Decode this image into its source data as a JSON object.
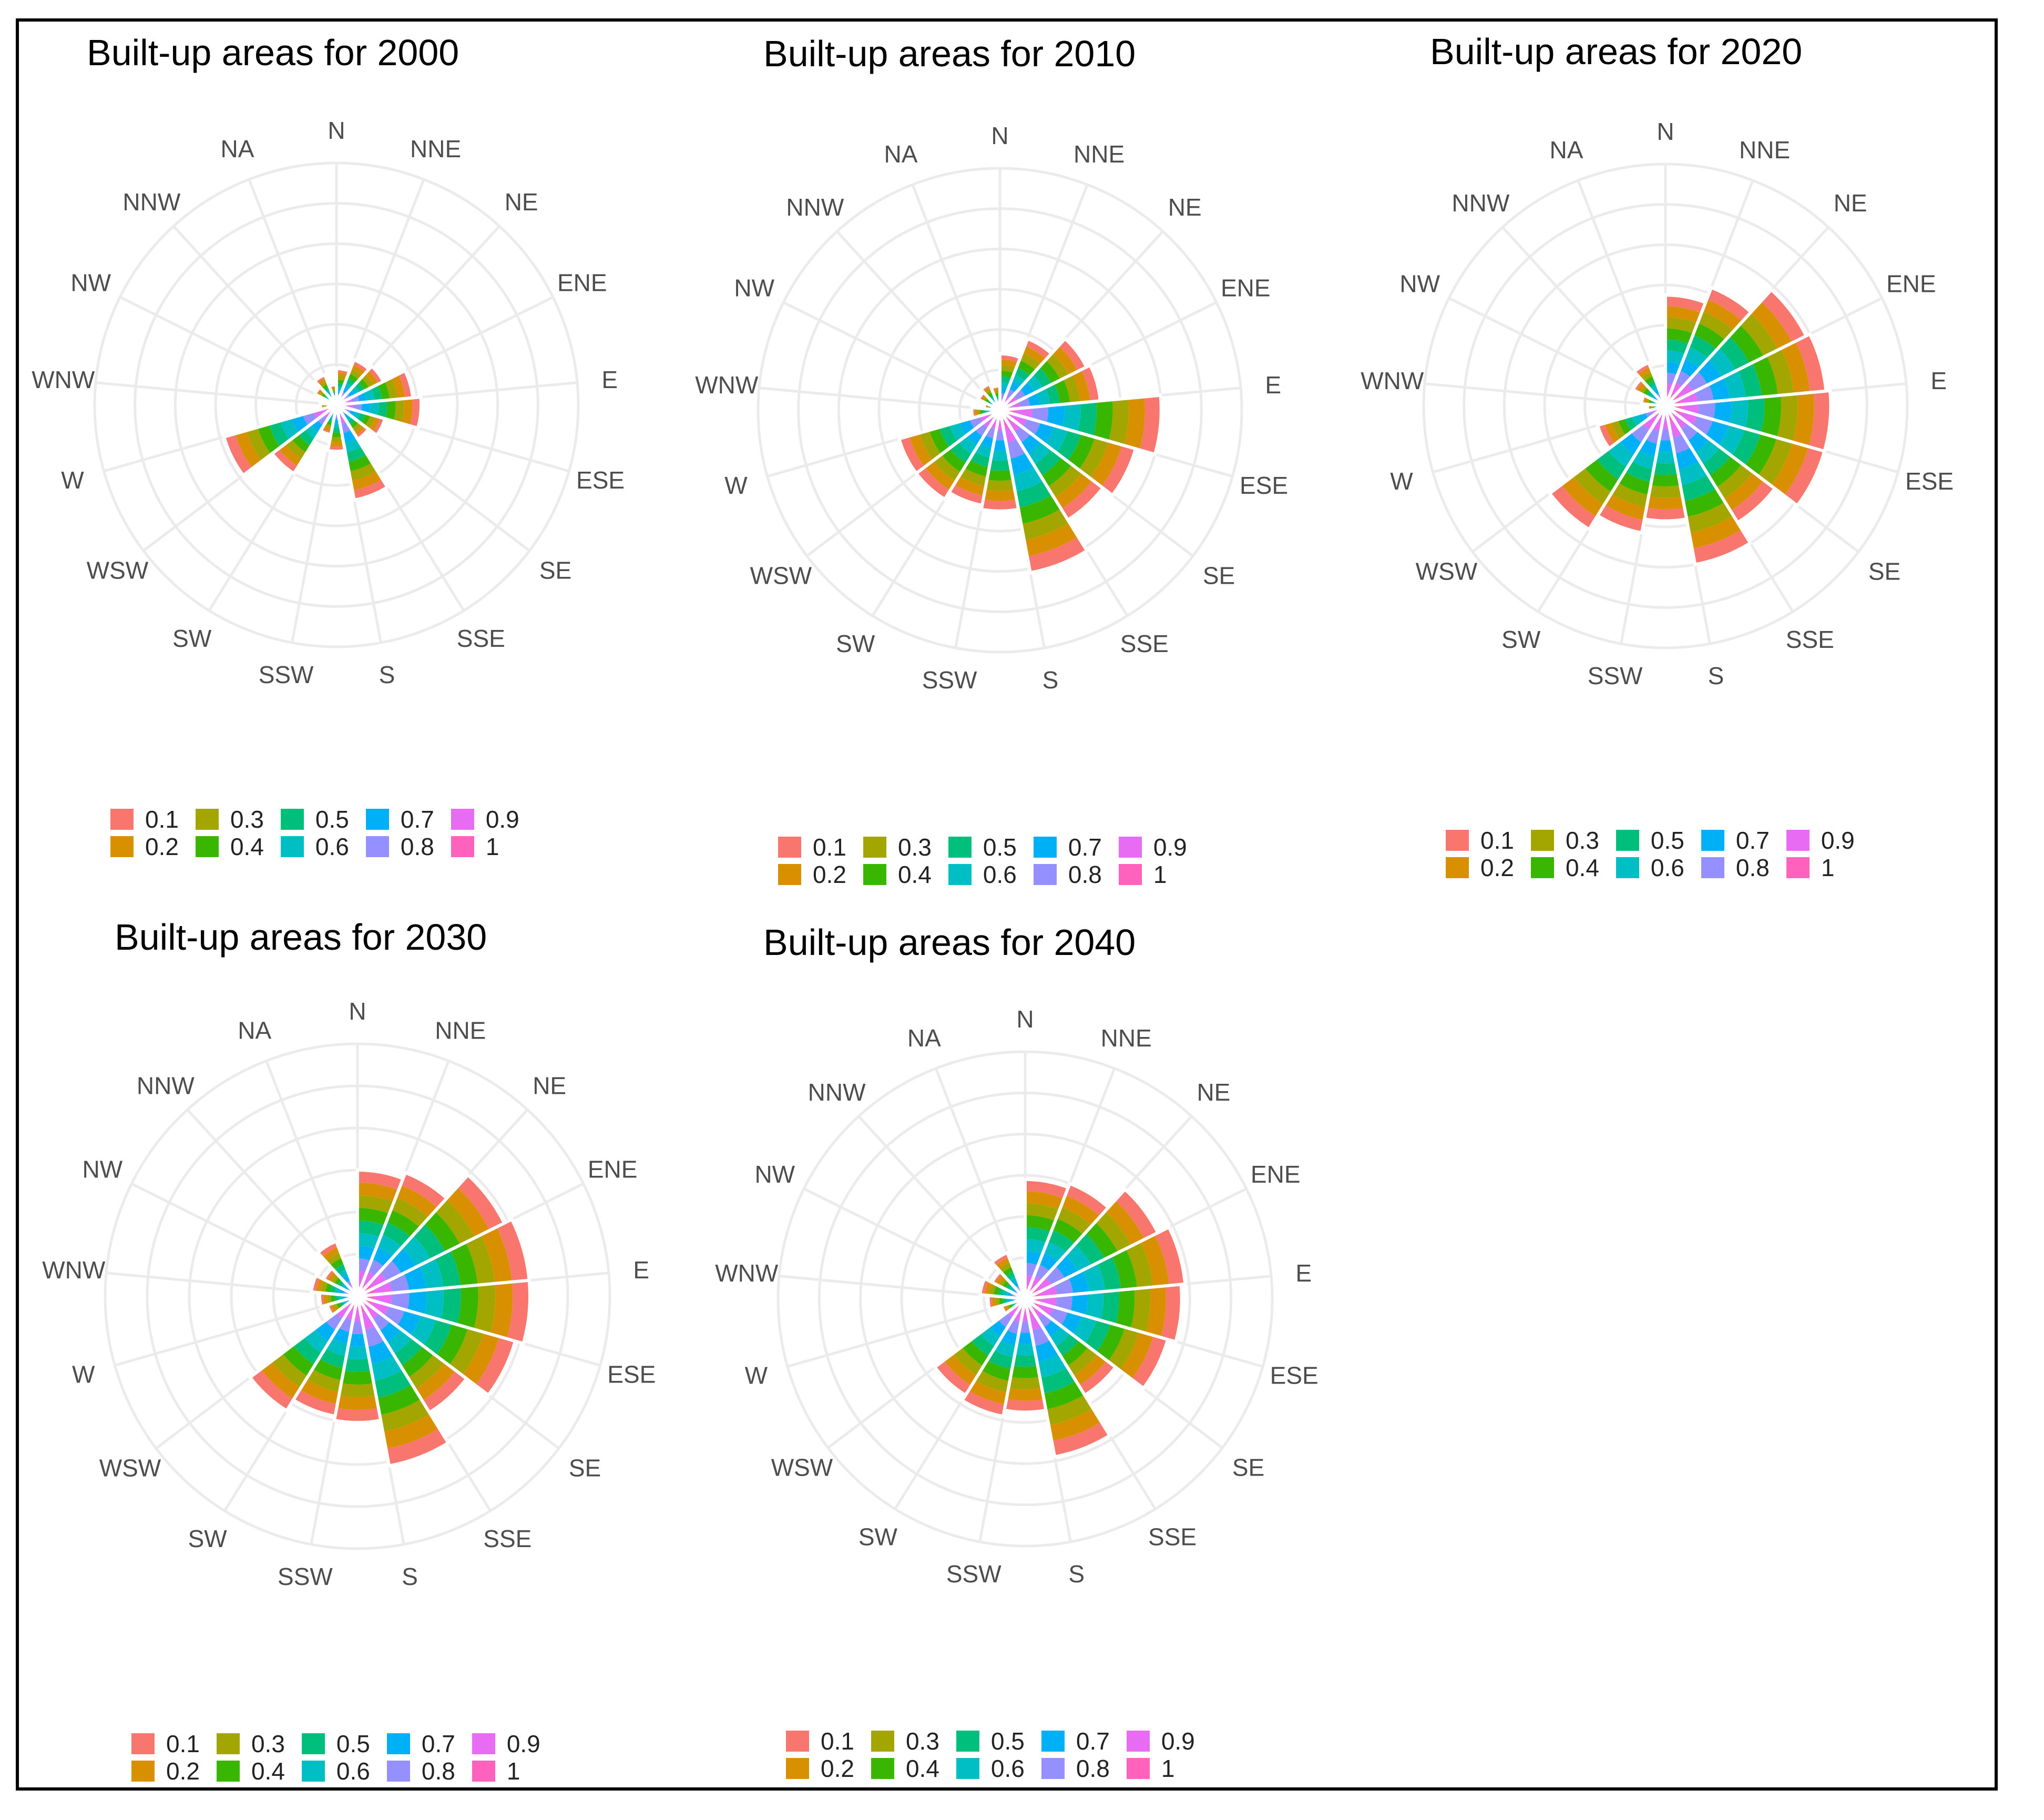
{
  "directions": [
    "N",
    "NNE",
    "NE",
    "ENE",
    "E",
    "ESE",
    "SE",
    "SSE",
    "S",
    "SSW",
    "SW",
    "WSW",
    "W",
    "WNW",
    "NW",
    "NNW",
    "NA"
  ],
  "chart_data": [
    {
      "type": "polar-bar",
      "title": "Built-up areas for 2000",
      "legend_title": "",
      "legend_labels": [
        "0.1",
        "0.2",
        "0.3",
        "0.4",
        "0.5",
        "0.6",
        "0.7",
        "0.8",
        "0.9",
        "1"
      ],
      "colors": [
        "#f8766d",
        "#d89000",
        "#a3a500",
        "#39b600",
        "#00bf7d",
        "#00bfc4",
        "#00b0f6",
        "#9590ff",
        "#e76bf3",
        "#ff62bc"
      ],
      "radial_max": 12,
      "values": [
        1.8,
        2.4,
        2.6,
        3.8,
        4.2,
        2.5,
        2.0,
        4.8,
        2.3,
        1.5,
        4.0,
        5.8,
        0.8,
        0.3,
        1.2,
        1.6,
        1.0
      ]
    },
    {
      "type": "polar-bar",
      "title": "Built-up areas for  2010",
      "legend_title": "",
      "legend_labels": [
        "0.1",
        "0.2",
        "0.3",
        "0.4",
        "0.5",
        "0.6",
        "0.7",
        "0.8",
        "0.9",
        "1"
      ],
      "colors": [
        "#f8766d",
        "#d89000",
        "#a3a500",
        "#39b600",
        "#00bf7d",
        "#00bfc4",
        "#00b0f6",
        "#9590ff",
        "#e76bf3",
        "#ff62bc"
      ],
      "radial_max": 12,
      "values": [
        2.8,
        3.8,
        4.8,
        5.0,
        8.0,
        7.0,
        6.4,
        8.2,
        5.0,
        4.8,
        5.2,
        5.2,
        1.4,
        0.8,
        1.2,
        1.4,
        1.2
      ]
    },
    {
      "type": "polar-bar",
      "title": "Built-up areas for  2020",
      "legend_title": "",
      "legend_labels": [
        "0.1",
        "0.2",
        "0.3",
        "0.4",
        "0.5",
        "0.6",
        "0.7",
        "0.8",
        "0.9",
        "1"
      ],
      "colors": [
        "#f8766d",
        "#d89000",
        "#a3a500",
        "#39b600",
        "#00bf7d",
        "#00bfc4",
        "#00b0f6",
        "#9590ff",
        "#e76bf3",
        "#ff62bc"
      ],
      "radial_max": 12,
      "values": [
        5.5,
        6.3,
        7.8,
        8.0,
        8.2,
        8.2,
        6.8,
        8.0,
        5.7,
        6.4,
        7.2,
        3.5,
        0.9,
        1.2,
        1.8,
        2.3,
        0.5
      ]
    },
    {
      "type": "polar-bar",
      "title": "Built-up areas for  2030",
      "legend_title": "",
      "legend_labels": [
        "0.1",
        "0.2",
        "0.3",
        "0.4",
        "0.5",
        "0.6",
        "0.7",
        "0.8",
        "0.9",
        "1"
      ],
      "colors": [
        "#f8766d",
        "#d89000",
        "#a3a500",
        "#39b600",
        "#00bf7d",
        "#00bfc4",
        "#00b0f6",
        "#9590ff",
        "#e76bf3",
        "#ff62bc"
      ],
      "radial_max": 12,
      "values": [
        6.0,
        6.3,
        7.8,
        8.2,
        8.2,
        7.8,
        6.5,
        8.2,
        6.0,
        5.8,
        6.4,
        1.5,
        1.8,
        2.2,
        1.8,
        2.8,
        0.5
      ]
    },
    {
      "type": "polar-bar",
      "title": "Built-up areas for  2040",
      "legend_title": "",
      "legend_labels": [
        "0.1",
        "0.2",
        "0.3",
        "0.4",
        "0.5",
        "0.6",
        "0.7",
        "0.8",
        "0.9",
        "1"
      ],
      "colors": [
        "#f8766d",
        "#d89000",
        "#a3a500",
        "#39b600",
        "#00bf7d",
        "#00bfc4",
        "#00b0f6",
        "#9590ff",
        "#e76bf3",
        "#ff62bc"
      ],
      "radial_max": 12,
      "values": [
        5.8,
        6.0,
        7.2,
        7.8,
        7.6,
        7.2,
        5.5,
        7.8,
        5.5,
        5.8,
        5.5,
        1.2,
        1.8,
        2.2,
        1.8,
        2.4,
        0.5
      ]
    }
  ]
}
